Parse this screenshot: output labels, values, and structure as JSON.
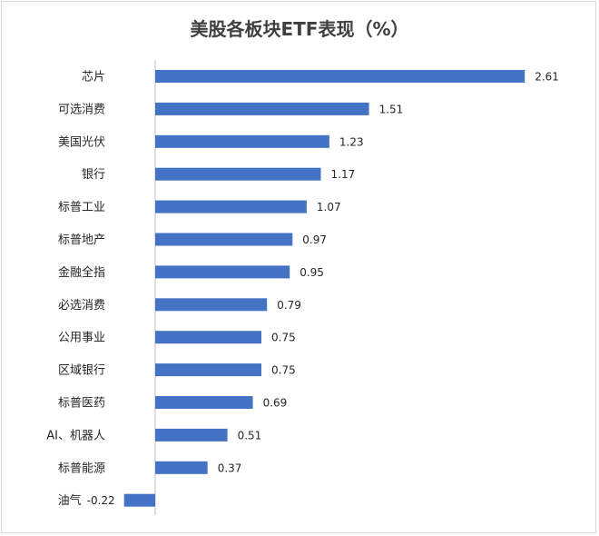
{
  "chart_data": {
    "type": "bar",
    "orientation": "horizontal",
    "title": "美股各板块ETF表现（%）",
    "categories": [
      "芯片",
      "可选消费",
      "美国光伏",
      "银行",
      "标普工业",
      "标普地产",
      "金融全指",
      "必选消费",
      "公用事业",
      "区域银行",
      "标普医药",
      "AI、机器人",
      "标普能源",
      "油气"
    ],
    "values": [
      2.61,
      1.51,
      1.23,
      1.17,
      1.07,
      0.97,
      0.95,
      0.79,
      0.75,
      0.75,
      0.69,
      0.51,
      0.37,
      -0.22
    ],
    "value_labels": [
      "2.61",
      "1.51",
      "1.23",
      "1.17",
      "1.07",
      "0.97",
      "0.95",
      "0.79",
      "0.75",
      "0.75",
      "0.69",
      "0.51",
      "0.37",
      "-0.22"
    ],
    "xlabel": "",
    "ylabel": "",
    "xlim": [
      -0.22,
      2.61
    ],
    "grid": false,
    "legend": "none",
    "bar_color": "#4472c4"
  }
}
